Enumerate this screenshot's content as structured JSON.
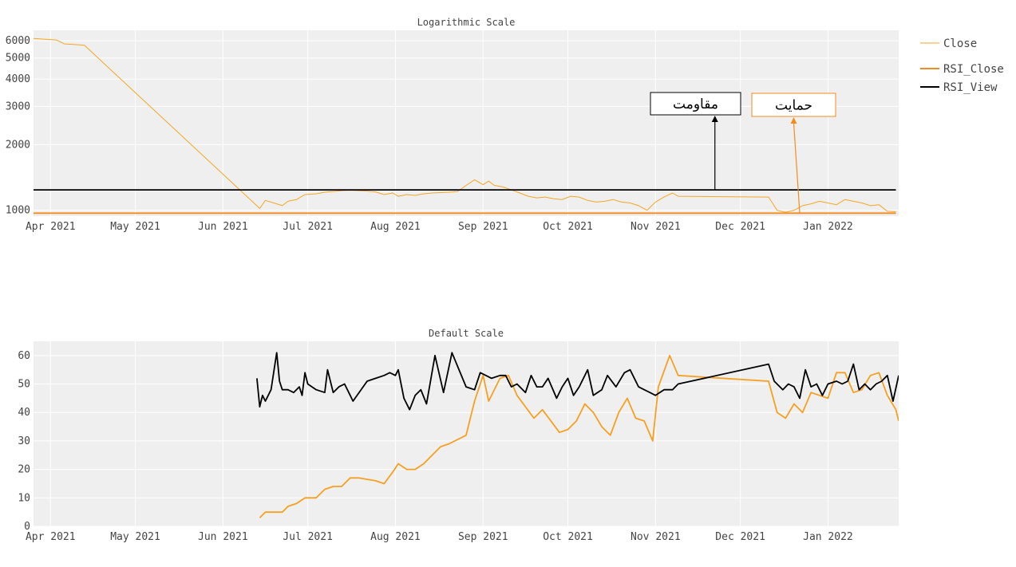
{
  "chart_data": [
    {
      "type": "line",
      "title": "Logarithmic Scale",
      "yscale": "log",
      "xlim": [
        "2021-03-26",
        "2022-01-26"
      ],
      "ylim": [
        940,
        6700
      ],
      "x_ticks": [
        {
          "date": "2021-04-01",
          "label": "Apr 2021"
        },
        {
          "date": "2021-05-01",
          "label": "May 2021"
        },
        {
          "date": "2021-06-01",
          "label": "Jun 2021"
        },
        {
          "date": "2021-07-01",
          "label": "Jul 2021"
        },
        {
          "date": "2021-08-01",
          "label": "Aug 2021"
        },
        {
          "date": "2021-09-01",
          "label": "Sep 2021"
        },
        {
          "date": "2021-10-01",
          "label": "Oct 2021"
        },
        {
          "date": "2021-11-01",
          "label": "Nov 2021"
        },
        {
          "date": "2021-12-01",
          "label": "Dec 2021"
        },
        {
          "date": "2022-01-01",
          "label": "Jan 2022"
        }
      ],
      "y_ticks": [
        {
          "value": 1000,
          "label": "1000"
        },
        {
          "value": 2000,
          "label": "2000"
        },
        {
          "value": 3000,
          "label": "3000"
        },
        {
          "value": 4000,
          "label": "4000"
        },
        {
          "value": 5000,
          "label": "5000"
        },
        {
          "value": 6000,
          "label": "6000"
        }
      ],
      "series": [
        {
          "name": "Close",
          "color": "#f5a623",
          "x": [
            "2021-03-26",
            "2021-04-03",
            "2021-04-06",
            "2021-04-08",
            "2021-04-13",
            "2021-06-14",
            "2021-06-16",
            "2021-06-19",
            "2021-06-22",
            "2021-06-24",
            "2021-06-27",
            "2021-06-30",
            "2021-07-04",
            "2021-07-07",
            "2021-07-10",
            "2021-07-13",
            "2021-07-16",
            "2021-07-19",
            "2021-07-22",
            "2021-07-25",
            "2021-07-28",
            "2021-07-31",
            "2021-08-02",
            "2021-08-05",
            "2021-08-08",
            "2021-08-11",
            "2021-08-14",
            "2021-08-17",
            "2021-08-20",
            "2021-08-23",
            "2021-08-26",
            "2021-08-29",
            "2021-09-01",
            "2021-09-03",
            "2021-09-05",
            "2021-09-08",
            "2021-09-11",
            "2021-09-14",
            "2021-09-17",
            "2021-09-20",
            "2021-09-23",
            "2021-09-26",
            "2021-09-29",
            "2021-10-02",
            "2021-10-05",
            "2021-10-08",
            "2021-10-11",
            "2021-10-14",
            "2021-10-17",
            "2021-10-20",
            "2021-10-23",
            "2021-10-26",
            "2021-10-29",
            "2021-11-01",
            "2021-11-04",
            "2021-11-07",
            "2021-11-09",
            "2021-12-11",
            "2021-12-14",
            "2021-12-17",
            "2021-12-20",
            "2021-12-23",
            "2021-12-26",
            "2021-12-29",
            "2022-01-01",
            "2022-01-04",
            "2022-01-07",
            "2022-01-10",
            "2022-01-13",
            "2022-01-16",
            "2022-01-19",
            "2022-01-22",
            "2022-01-25"
          ],
          "values": [
            6150,
            6050,
            5800,
            5780,
            5720,
            1020,
            1110,
            1080,
            1050,
            1100,
            1120,
            1180,
            1190,
            1210,
            1220,
            1230,
            1235,
            1230,
            1225,
            1215,
            1180,
            1200,
            1160,
            1180,
            1170,
            1190,
            1200,
            1205,
            1210,
            1220,
            1300,
            1380,
            1310,
            1360,
            1300,
            1280,
            1240,
            1200,
            1160,
            1140,
            1150,
            1130,
            1120,
            1160,
            1150,
            1110,
            1090,
            1100,
            1120,
            1090,
            1080,
            1050,
            1000,
            1090,
            1150,
            1200,
            1160,
            1150,
            1000,
            980,
            1000,
            1050,
            1070,
            1100,
            1080,
            1060,
            1120,
            1100,
            1080,
            1050,
            1060,
            990,
            985
          ]
        },
        {
          "name": "RSI_Close",
          "color": "#f28c1e",
          "x": [
            "2021-03-26",
            "2022-01-25"
          ],
          "values": [
            970,
            970
          ]
        },
        {
          "name": "RSI_View",
          "color": "#000000",
          "x": [
            "2021-03-26",
            "2022-01-25"
          ],
          "values": [
            1240,
            1240
          ]
        }
      ],
      "annotations": [
        {
          "text": "مقاومت",
          "color": "#000000",
          "border": "#000000",
          "target_date": "2021-11-22",
          "target_value": 1240
        },
        {
          "text": "حمایت",
          "color": "#f28c1e",
          "border": "#f28c1e",
          "target_date": "2021-12-22",
          "target_value": 970
        }
      ]
    },
    {
      "type": "line",
      "title": "Default Scale",
      "xlim": [
        "2021-03-26",
        "2022-01-26"
      ],
      "ylim": [
        0,
        65
      ],
      "x_ticks": [
        {
          "date": "2021-04-01",
          "label": "Apr 2021"
        },
        {
          "date": "2021-05-01",
          "label": "May 2021"
        },
        {
          "date": "2021-06-01",
          "label": "Jun 2021"
        },
        {
          "date": "2021-07-01",
          "label": "Jul 2021"
        },
        {
          "date": "2021-08-01",
          "label": "Aug 2021"
        },
        {
          "date": "2021-09-01",
          "label": "Sep 2021"
        },
        {
          "date": "2021-10-01",
          "label": "Oct 2021"
        },
        {
          "date": "2021-11-01",
          "label": "Nov 2021"
        },
        {
          "date": "2021-12-01",
          "label": "Dec 2021"
        },
        {
          "date": "2022-01-01",
          "label": "Jan 2022"
        }
      ],
      "y_ticks": [
        {
          "value": 0,
          "label": "0"
        },
        {
          "value": 10,
          "label": "10"
        },
        {
          "value": 20,
          "label": "20"
        },
        {
          "value": 30,
          "label": "30"
        },
        {
          "value": 40,
          "label": "40"
        },
        {
          "value": 50,
          "label": "50"
        },
        {
          "value": 60,
          "label": "60"
        }
      ],
      "series": [
        {
          "name": "RSI_Close",
          "color": "#f5a020",
          "x": [
            "2021-06-14",
            "2021-06-16",
            "2021-06-22",
            "2021-06-24",
            "2021-06-27",
            "2021-06-30",
            "2021-07-04",
            "2021-07-07",
            "2021-07-10",
            "2021-07-13",
            "2021-07-16",
            "2021-07-19",
            "2021-07-25",
            "2021-07-28",
            "2021-07-31",
            "2021-08-02",
            "2021-08-05",
            "2021-08-08",
            "2021-08-11",
            "2021-08-14",
            "2021-08-17",
            "2021-08-20",
            "2021-08-26",
            "2021-08-29",
            "2021-09-01",
            "2021-09-03",
            "2021-09-07",
            "2021-09-10",
            "2021-09-13",
            "2021-09-16",
            "2021-09-19",
            "2021-09-22",
            "2021-09-25",
            "2021-09-28",
            "2021-10-01",
            "2021-10-04",
            "2021-10-07",
            "2021-10-10",
            "2021-10-13",
            "2021-10-16",
            "2021-10-19",
            "2021-10-22",
            "2021-10-25",
            "2021-10-28",
            "2021-10-31",
            "2021-11-02",
            "2021-11-06",
            "2021-11-09",
            "2021-12-11",
            "2021-12-14",
            "2021-12-17",
            "2021-12-20",
            "2021-12-23",
            "2021-12-26",
            "2021-12-29",
            "2022-01-01",
            "2022-01-04",
            "2022-01-07",
            "2022-01-10",
            "2022-01-13",
            "2022-01-16",
            "2022-01-19",
            "2022-01-22",
            "2022-01-25",
            "2022-01-26"
          ],
          "values": [
            3,
            5,
            5,
            7,
            8,
            10,
            10,
            13,
            14,
            14,
            17,
            17,
            16,
            15,
            19,
            22,
            20,
            20,
            22,
            25,
            28,
            29,
            32,
            44,
            53,
            44,
            52,
            53,
            46,
            42,
            38,
            41,
            37,
            33,
            34,
            37,
            43,
            40,
            35,
            32,
            40,
            45,
            38,
            37,
            30,
            49,
            60,
            53,
            51,
            40,
            38,
            43,
            40,
            47,
            46,
            45,
            54,
            54,
            47,
            48,
            53,
            54,
            46,
            41,
            37
          ]
        },
        {
          "name": "RSI_View",
          "color": "#000000",
          "x": [
            "2021-06-13",
            "2021-06-14",
            "2021-06-15",
            "2021-06-16",
            "2021-06-18",
            "2021-06-20",
            "2021-06-21",
            "2021-06-22",
            "2021-06-24",
            "2021-06-26",
            "2021-06-28",
            "2021-06-29",
            "2021-06-30",
            "2021-07-01",
            "2021-07-04",
            "2021-07-07",
            "2021-07-08",
            "2021-07-10",
            "2021-07-12",
            "2021-07-14",
            "2021-07-16",
            "2021-07-17",
            "2021-07-22",
            "2021-07-25",
            "2021-07-28",
            "2021-07-30",
            "2021-08-01",
            "2021-08-02",
            "2021-08-04",
            "2021-08-06",
            "2021-08-08",
            "2021-08-10",
            "2021-08-12",
            "2021-08-15",
            "2021-08-18",
            "2021-08-21",
            "2021-08-26",
            "2021-08-29",
            "2021-08-31",
            "2021-09-02",
            "2021-09-04",
            "2021-09-07",
            "2021-09-09",
            "2021-09-11",
            "2021-09-13",
            "2021-09-16",
            "2021-09-18",
            "2021-09-20",
            "2021-09-22",
            "2021-09-24",
            "2021-09-27",
            "2021-09-29",
            "2021-10-01",
            "2021-10-03",
            "2021-10-05",
            "2021-10-08",
            "2021-10-10",
            "2021-10-13",
            "2021-10-15",
            "2021-10-18",
            "2021-10-21",
            "2021-10-23",
            "2021-10-26",
            "2021-10-28",
            "2021-10-30",
            "2021-11-01",
            "2021-11-04",
            "2021-11-07",
            "2021-11-09",
            "2021-12-11",
            "2021-12-13",
            "2021-12-16",
            "2021-12-18",
            "2021-12-20",
            "2021-12-22",
            "2021-12-24",
            "2021-12-26",
            "2021-12-28",
            "2021-12-30",
            "2022-01-01",
            "2022-01-04",
            "2022-01-06",
            "2022-01-08",
            "2022-01-10",
            "2022-01-12",
            "2022-01-14",
            "2022-01-16",
            "2022-01-18",
            "2022-01-20",
            "2022-01-22",
            "2022-01-24",
            "2022-01-26"
          ],
          "values": [
            52,
            42,
            46,
            44,
            48,
            61,
            51,
            48,
            48,
            47,
            49,
            46,
            54,
            50,
            48,
            47,
            55,
            47,
            49,
            50,
            46,
            44,
            51,
            52,
            53,
            54,
            53,
            55,
            45,
            41,
            46,
            48,
            43,
            60,
            47,
            61,
            49,
            48,
            54,
            53,
            52,
            53,
            53,
            49,
            50,
            47,
            53,
            49,
            49,
            52,
            45,
            49,
            52,
            46,
            49,
            55,
            46,
            48,
            53,
            49,
            54,
            55,
            49,
            48,
            47,
            46,
            48,
            48,
            50,
            57,
            51,
            48,
            50,
            49,
            45,
            55,
            49,
            50,
            46,
            50,
            51,
            50,
            51,
            57,
            48,
            50,
            48,
            50,
            51,
            53,
            44,
            53
          ]
        }
      ]
    }
  ],
  "legend": {
    "position": "top-right",
    "items": [
      {
        "name": "Close",
        "color": "#f5a623",
        "width": 1
      },
      {
        "name": "RSI_Close",
        "color": "#f28c1e",
        "width": 2
      },
      {
        "name": "RSI_View",
        "color": "#000000",
        "width": 2
      }
    ]
  }
}
